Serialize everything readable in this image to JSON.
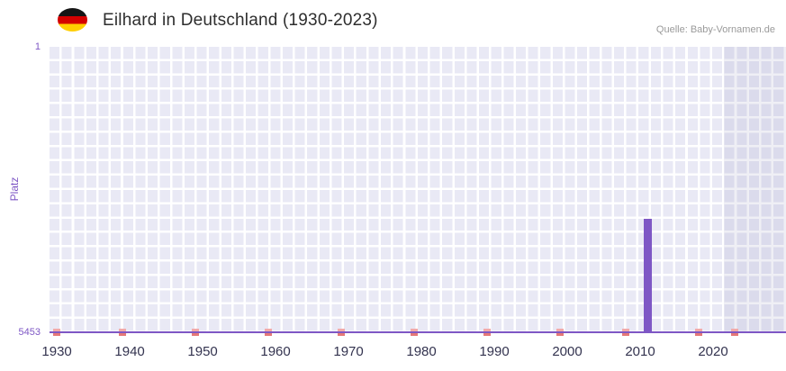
{
  "header": {
    "title": "Eilhard in Deutschland (1930-2023)",
    "source": "Quelle: Baby-Vornamen.de",
    "flag": "german-flag"
  },
  "chart_data": {
    "type": "bar",
    "title": "Eilhard in Deutschland (1930-2023)",
    "xlabel": "",
    "ylabel": "Platz",
    "y_axis": {
      "top_label": "1",
      "bottom_label": "5453",
      "min": 1,
      "max": 5453,
      "inverted": true
    },
    "x_axis": {
      "tick_labels": [
        "1930",
        "1940",
        "1950",
        "1960",
        "1970",
        "1980",
        "1990",
        "2000",
        "2010",
        "2020"
      ],
      "range_start": 1929,
      "range_end": 2030
    },
    "series": [
      {
        "name": "Platz",
        "color": "#7e57c5",
        "points": [
          {
            "year": 2011,
            "rank": 3280
          }
        ]
      },
      {
        "name": "year-markers",
        "color": "#e47878",
        "years": [
          1930,
          1939,
          1949,
          1959,
          1969,
          1979,
          1989,
          1999,
          2008,
          2018,
          2023
        ]
      }
    ],
    "highlight_region": {
      "start_year": 2021.5,
      "end_year": 2030
    },
    "colors": {
      "plot_background": "#e9e9f5",
      "grid": "#ffffff",
      "bar": "#7e57c5",
      "axis": "#7e57c5",
      "marker": "#e47878",
      "title_text": "#2e2e2e",
      "source_text": "#9a9a9a",
      "x_tick_text": "#33334f",
      "y_tick_text": "#7e57c5"
    }
  }
}
